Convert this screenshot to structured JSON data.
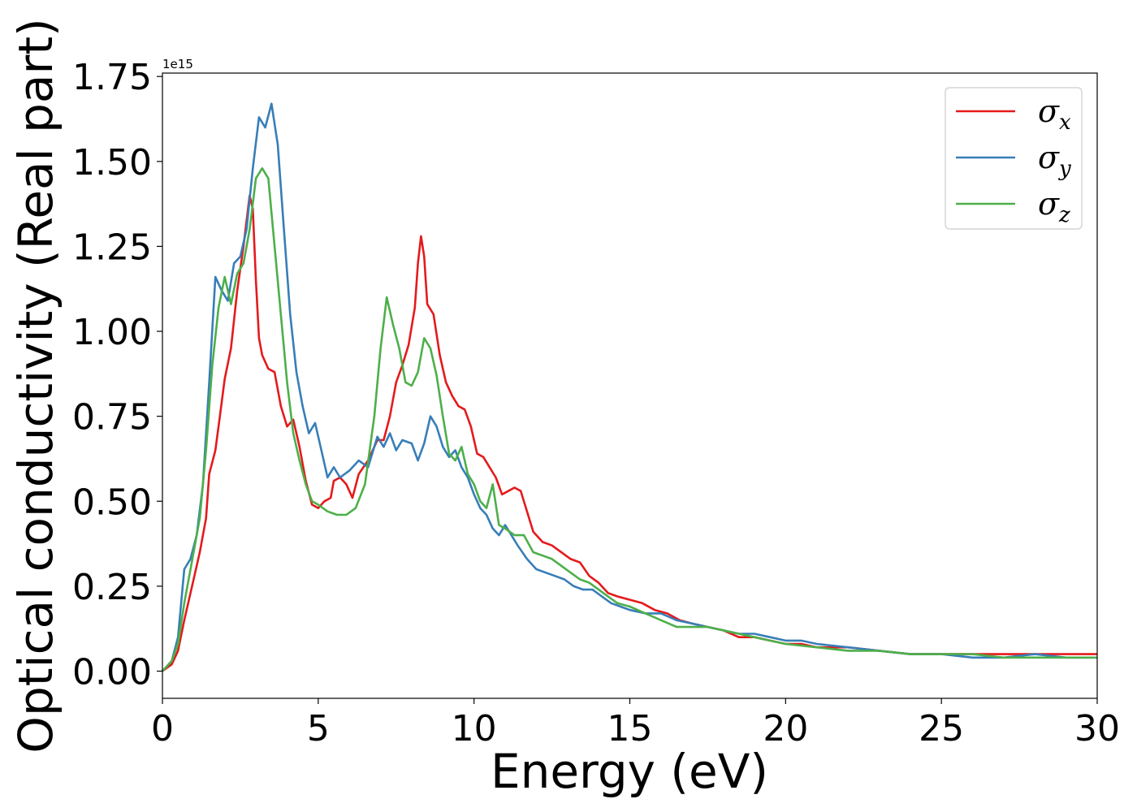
{
  "chart_data": {
    "type": "line",
    "xlabel": "Energy (eV)",
    "ylabel": "Optical conductivity (Real part)",
    "y_offset_label": "1e15",
    "xlim": [
      0,
      30
    ],
    "ylim": [
      -0.08,
      1.76
    ],
    "grid": false,
    "legend_placement": "top-right",
    "x_ticks": [
      0,
      5,
      10,
      15,
      20,
      25,
      30
    ],
    "x_tick_labels": [
      "0",
      "5",
      "10",
      "15",
      "20",
      "25",
      "30"
    ],
    "y_ticks": [
      0,
      0.25,
      0.5,
      0.75,
      1.0,
      1.25,
      1.5,
      1.75
    ],
    "y_tick_labels": [
      "0.00",
      "0.25",
      "0.50",
      "0.75",
      "1.00",
      "1.25",
      "1.50",
      "1.75"
    ],
    "series": [
      {
        "name": "σx",
        "legend_symbol": "σ",
        "legend_subscript": "x",
        "color": "#e41a1c",
        "points": [
          [
            0,
            0.0
          ],
          [
            0.3,
            0.02
          ],
          [
            0.5,
            0.06
          ],
          [
            0.7,
            0.15
          ],
          [
            1.0,
            0.27
          ],
          [
            1.2,
            0.35
          ],
          [
            1.4,
            0.45
          ],
          [
            1.5,
            0.58
          ],
          [
            1.7,
            0.65
          ],
          [
            1.8,
            0.72
          ],
          [
            2.0,
            0.86
          ],
          [
            2.2,
            0.95
          ],
          [
            2.4,
            1.12
          ],
          [
            2.6,
            1.25
          ],
          [
            2.8,
            1.4
          ],
          [
            2.9,
            1.36
          ],
          [
            3.0,
            1.15
          ],
          [
            3.1,
            0.98
          ],
          [
            3.2,
            0.93
          ],
          [
            3.4,
            0.89
          ],
          [
            3.6,
            0.88
          ],
          [
            3.8,
            0.78
          ],
          [
            4.0,
            0.72
          ],
          [
            4.2,
            0.74
          ],
          [
            4.4,
            0.66
          ],
          [
            4.6,
            0.56
          ],
          [
            4.8,
            0.49
          ],
          [
            5.0,
            0.48
          ],
          [
            5.2,
            0.5
          ],
          [
            5.4,
            0.51
          ],
          [
            5.5,
            0.56
          ],
          [
            5.7,
            0.57
          ],
          [
            5.9,
            0.55
          ],
          [
            6.1,
            0.51
          ],
          [
            6.3,
            0.58
          ],
          [
            6.6,
            0.62
          ],
          [
            6.9,
            0.68
          ],
          [
            7.1,
            0.68
          ],
          [
            7.3,
            0.75
          ],
          [
            7.5,
            0.85
          ],
          [
            7.7,
            0.9
          ],
          [
            7.9,
            0.96
          ],
          [
            8.1,
            1.07
          ],
          [
            8.2,
            1.2
          ],
          [
            8.3,
            1.28
          ],
          [
            8.4,
            1.22
          ],
          [
            8.5,
            1.08
          ],
          [
            8.7,
            1.05
          ],
          [
            8.9,
            0.93
          ],
          [
            9.1,
            0.85
          ],
          [
            9.3,
            0.81
          ],
          [
            9.5,
            0.78
          ],
          [
            9.7,
            0.77
          ],
          [
            9.9,
            0.72
          ],
          [
            10.1,
            0.64
          ],
          [
            10.3,
            0.63
          ],
          [
            10.5,
            0.6
          ],
          [
            10.7,
            0.57
          ],
          [
            10.9,
            0.52
          ],
          [
            11.1,
            0.53
          ],
          [
            11.3,
            0.54
          ],
          [
            11.5,
            0.53
          ],
          [
            11.7,
            0.47
          ],
          [
            11.9,
            0.41
          ],
          [
            12.2,
            0.38
          ],
          [
            12.5,
            0.37
          ],
          [
            12.8,
            0.35
          ],
          [
            13.1,
            0.33
          ],
          [
            13.4,
            0.32
          ],
          [
            13.7,
            0.28
          ],
          [
            14.0,
            0.26
          ],
          [
            14.3,
            0.23
          ],
          [
            14.6,
            0.22
          ],
          [
            15.0,
            0.21
          ],
          [
            15.4,
            0.2
          ],
          [
            15.8,
            0.18
          ],
          [
            16.2,
            0.17
          ],
          [
            16.6,
            0.15
          ],
          [
            17.0,
            0.14
          ],
          [
            17.5,
            0.13
          ],
          [
            18.0,
            0.12
          ],
          [
            18.5,
            0.1
          ],
          [
            19.0,
            0.1
          ],
          [
            19.5,
            0.09
          ],
          [
            20.0,
            0.08
          ],
          [
            20.5,
            0.08
          ],
          [
            21.0,
            0.07
          ],
          [
            21.5,
            0.07
          ],
          [
            22.0,
            0.07
          ],
          [
            23.0,
            0.06
          ],
          [
            24.0,
            0.05
          ],
          [
            25.0,
            0.05
          ],
          [
            26.0,
            0.05
          ],
          [
            27.0,
            0.05
          ],
          [
            28.0,
            0.05
          ],
          [
            29.0,
            0.05
          ],
          [
            30.0,
            0.05
          ]
        ]
      },
      {
        "name": "σy",
        "legend_symbol": "σ",
        "legend_subscript": "y",
        "color": "#377eb8",
        "points": [
          [
            0,
            0.0
          ],
          [
            0.3,
            0.03
          ],
          [
            0.5,
            0.1
          ],
          [
            0.7,
            0.3
          ],
          [
            0.9,
            0.33
          ],
          [
            1.1,
            0.4
          ],
          [
            1.3,
            0.55
          ],
          [
            1.5,
            0.85
          ],
          [
            1.7,
            1.16
          ],
          [
            1.9,
            1.12
          ],
          [
            2.1,
            1.09
          ],
          [
            2.3,
            1.2
          ],
          [
            2.5,
            1.22
          ],
          [
            2.7,
            1.3
          ],
          [
            2.9,
            1.48
          ],
          [
            3.1,
            1.63
          ],
          [
            3.3,
            1.6
          ],
          [
            3.5,
            1.67
          ],
          [
            3.7,
            1.55
          ],
          [
            3.9,
            1.3
          ],
          [
            4.1,
            1.05
          ],
          [
            4.3,
            0.88
          ],
          [
            4.5,
            0.78
          ],
          [
            4.7,
            0.7
          ],
          [
            4.9,
            0.73
          ],
          [
            5.1,
            0.65
          ],
          [
            5.3,
            0.57
          ],
          [
            5.5,
            0.6
          ],
          [
            5.7,
            0.57
          ],
          [
            6.0,
            0.59
          ],
          [
            6.3,
            0.62
          ],
          [
            6.6,
            0.6
          ],
          [
            6.9,
            0.69
          ],
          [
            7.1,
            0.66
          ],
          [
            7.3,
            0.7
          ],
          [
            7.5,
            0.65
          ],
          [
            7.7,
            0.68
          ],
          [
            8.0,
            0.67
          ],
          [
            8.2,
            0.62
          ],
          [
            8.4,
            0.67
          ],
          [
            8.6,
            0.75
          ],
          [
            8.8,
            0.72
          ],
          [
            9.0,
            0.66
          ],
          [
            9.2,
            0.63
          ],
          [
            9.4,
            0.65
          ],
          [
            9.6,
            0.6
          ],
          [
            9.8,
            0.57
          ],
          [
            10.0,
            0.52
          ],
          [
            10.2,
            0.48
          ],
          [
            10.4,
            0.46
          ],
          [
            10.6,
            0.42
          ],
          [
            10.8,
            0.4
          ],
          [
            11.0,
            0.43
          ],
          [
            11.2,
            0.4
          ],
          [
            11.4,
            0.37
          ],
          [
            11.7,
            0.33
          ],
          [
            12.0,
            0.3
          ],
          [
            12.3,
            0.29
          ],
          [
            12.6,
            0.28
          ],
          [
            12.9,
            0.27
          ],
          [
            13.2,
            0.25
          ],
          [
            13.5,
            0.24
          ],
          [
            13.8,
            0.24
          ],
          [
            14.1,
            0.22
          ],
          [
            14.4,
            0.2
          ],
          [
            14.7,
            0.19
          ],
          [
            15.0,
            0.18
          ],
          [
            15.5,
            0.17
          ],
          [
            16.0,
            0.17
          ],
          [
            16.5,
            0.15
          ],
          [
            17.0,
            0.14
          ],
          [
            17.5,
            0.13
          ],
          [
            18.0,
            0.12
          ],
          [
            18.5,
            0.11
          ],
          [
            19.0,
            0.11
          ],
          [
            19.5,
            0.1
          ],
          [
            20.0,
            0.09
          ],
          [
            20.5,
            0.09
          ],
          [
            21.0,
            0.08
          ],
          [
            22.0,
            0.07
          ],
          [
            23.0,
            0.06
          ],
          [
            24.0,
            0.05
          ],
          [
            25.0,
            0.05
          ],
          [
            26.0,
            0.04
          ],
          [
            27.0,
            0.04
          ],
          [
            28.0,
            0.05
          ],
          [
            29.0,
            0.04
          ],
          [
            30.0,
            0.04
          ]
        ]
      },
      {
        "name": "σz",
        "legend_symbol": "σ",
        "legend_subscript": "z",
        "color": "#4daf4a",
        "points": [
          [
            0,
            0.0
          ],
          [
            0.3,
            0.03
          ],
          [
            0.5,
            0.08
          ],
          [
            0.7,
            0.2
          ],
          [
            1.0,
            0.35
          ],
          [
            1.2,
            0.45
          ],
          [
            1.4,
            0.65
          ],
          [
            1.6,
            0.9
          ],
          [
            1.8,
            1.07
          ],
          [
            2.0,
            1.16
          ],
          [
            2.2,
            1.08
          ],
          [
            2.4,
            1.17
          ],
          [
            2.6,
            1.2
          ],
          [
            2.8,
            1.3
          ],
          [
            3.0,
            1.45
          ],
          [
            3.2,
            1.48
          ],
          [
            3.4,
            1.45
          ],
          [
            3.6,
            1.25
          ],
          [
            3.8,
            1.05
          ],
          [
            4.0,
            0.85
          ],
          [
            4.2,
            0.7
          ],
          [
            4.4,
            0.62
          ],
          [
            4.6,
            0.55
          ],
          [
            4.8,
            0.5
          ],
          [
            5.0,
            0.49
          ],
          [
            5.3,
            0.47
          ],
          [
            5.6,
            0.46
          ],
          [
            5.9,
            0.46
          ],
          [
            6.2,
            0.48
          ],
          [
            6.5,
            0.55
          ],
          [
            6.8,
            0.75
          ],
          [
            7.0,
            0.95
          ],
          [
            7.2,
            1.1
          ],
          [
            7.4,
            1.02
          ],
          [
            7.6,
            0.95
          ],
          [
            7.8,
            0.85
          ],
          [
            8.0,
            0.84
          ],
          [
            8.2,
            0.88
          ],
          [
            8.4,
            0.98
          ],
          [
            8.6,
            0.95
          ],
          [
            8.8,
            0.87
          ],
          [
            9.0,
            0.75
          ],
          [
            9.2,
            0.64
          ],
          [
            9.4,
            0.62
          ],
          [
            9.6,
            0.66
          ],
          [
            9.8,
            0.58
          ],
          [
            10.0,
            0.55
          ],
          [
            10.2,
            0.5
          ],
          [
            10.4,
            0.48
          ],
          [
            10.6,
            0.55
          ],
          [
            10.8,
            0.43
          ],
          [
            11.0,
            0.42
          ],
          [
            11.3,
            0.4
          ],
          [
            11.6,
            0.4
          ],
          [
            11.9,
            0.35
          ],
          [
            12.2,
            0.34
          ],
          [
            12.5,
            0.33
          ],
          [
            12.8,
            0.31
          ],
          [
            13.1,
            0.29
          ],
          [
            13.4,
            0.27
          ],
          [
            13.7,
            0.26
          ],
          [
            14.0,
            0.24
          ],
          [
            14.3,
            0.22
          ],
          [
            14.6,
            0.2
          ],
          [
            15.0,
            0.19
          ],
          [
            15.5,
            0.17
          ],
          [
            16.0,
            0.15
          ],
          [
            16.5,
            0.13
          ],
          [
            17.0,
            0.13
          ],
          [
            17.5,
            0.13
          ],
          [
            18.0,
            0.12
          ],
          [
            18.5,
            0.11
          ],
          [
            19.0,
            0.1
          ],
          [
            19.5,
            0.09
          ],
          [
            20.0,
            0.08
          ],
          [
            21.0,
            0.07
          ],
          [
            22.0,
            0.06
          ],
          [
            23.0,
            0.06
          ],
          [
            24.0,
            0.05
          ],
          [
            25.0,
            0.05
          ],
          [
            26.0,
            0.05
          ],
          [
            27.0,
            0.04
          ],
          [
            28.0,
            0.04
          ],
          [
            29.0,
            0.04
          ],
          [
            30.0,
            0.04
          ]
        ]
      }
    ]
  }
}
